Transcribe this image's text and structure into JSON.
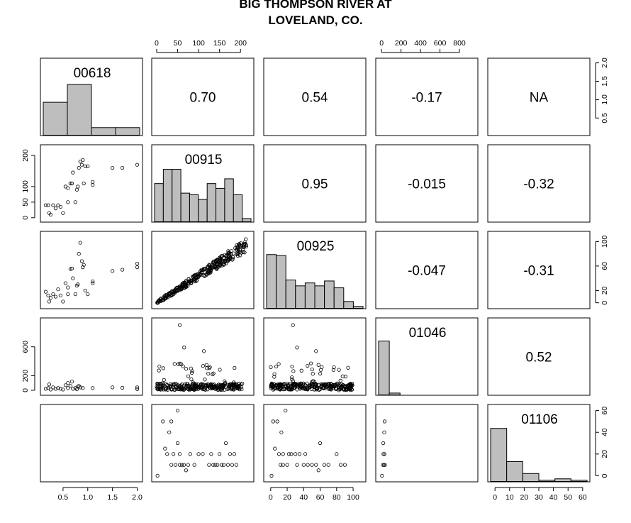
{
  "title": {
    "line1": "BIG THOMPSON RIVER AT",
    "line2": "LOVELAND, CO."
  },
  "chart_data": {
    "type": "scatter",
    "variables": [
      "00618",
      "00915",
      "00925",
      "01046",
      "01106"
    ],
    "axes": [
      {
        "range": [
          0.1,
          2.05
        ],
        "ticks": [
          0.5,
          1.0,
          1.5,
          2.0
        ],
        "tick_labels": [
          "0.5",
          "1.0",
          "1.5",
          "2.0"
        ]
      },
      {
        "range": [
          -5,
          225
        ],
        "ticks": [
          0,
          50,
          100,
          150,
          200
        ],
        "tick_labels": [
          "0",
          "50",
          "100",
          "150",
          "200"
        ]
      },
      {
        "range": [
          -5,
          112
        ],
        "ticks": [
          0,
          20,
          40,
          60,
          80,
          100
        ],
        "tick_labels": [
          "0",
          "20",
          "40",
          "60",
          "80",
          "100"
        ]
      },
      {
        "range": [
          -30,
          960
        ],
        "ticks": [
          0,
          200,
          400,
          600,
          800
        ],
        "tick_labels": [
          "0",
          "200",
          "400",
          "600",
          "800"
        ]
      },
      {
        "range": [
          -3,
          63
        ],
        "ticks": [
          0,
          10,
          20,
          30,
          40,
          50,
          60
        ],
        "tick_labels": [
          "0",
          "10",
          "20",
          "30",
          "40",
          "50",
          "60"
        ]
      }
    ],
    "top_axis": [
      {
        "col": 1,
        "axis": 1,
        "ticks": [
          0,
          50,
          100,
          150,
          200
        ],
        "tick_labels": [
          "0",
          "50",
          "100",
          "150",
          "200"
        ]
      },
      {
        "col": 3,
        "axis": 3,
        "ticks": [
          0,
          200,
          400,
          600,
          800
        ],
        "tick_labels": [
          "0",
          "200",
          "400",
          "600",
          "800"
        ]
      }
    ],
    "right_axis": [
      {
        "row": 0,
        "ticks": [
          0.5,
          1.0,
          1.5,
          2.0
        ],
        "tick_labels": [
          "0.5",
          "1.0",
          "1.5",
          "2.0"
        ],
        "range": [
          0.1,
          2.05
        ]
      },
      {
        "row": 2,
        "ticks": [
          0,
          20,
          60,
          100
        ],
        "tick_labels": [
          "0",
          "20",
          "60",
          "100"
        ],
        "range": [
          -5,
          112
        ]
      },
      {
        "row": 4,
        "ticks": [
          0,
          20,
          40,
          60
        ],
        "tick_labels": [
          "0",
          "20",
          "40",
          "60"
        ],
        "range": [
          -3,
          63
        ]
      }
    ],
    "left_axis": [
      {
        "row": 1,
        "ticks": [
          0,
          50,
          100,
          200
        ],
        "tick_labels": [
          "0",
          "50",
          "100",
          "200"
        ],
        "range": [
          -5,
          225
        ]
      },
      {
        "row": 3,
        "ticks": [
          0,
          200,
          600
        ],
        "tick_labels": [
          "0",
          "200",
          "600"
        ],
        "range": [
          -30,
          960
        ]
      }
    ],
    "bottom_axis": [
      {
        "col": 0,
        "ticks": [
          0.5,
          1.0,
          1.5,
          2.0
        ],
        "tick_labels": [
          "0.5",
          "1.0",
          "1.5",
          "2.0"
        ],
        "range": [
          0.1,
          2.05
        ]
      },
      {
        "col": 2,
        "ticks": [
          0,
          20,
          40,
          60,
          80,
          100
        ],
        "tick_labels": [
          "0",
          "20",
          "40",
          "60",
          "80",
          "100"
        ],
        "range": [
          -5,
          112
        ]
      },
      {
        "col": 4,
        "ticks": [
          0,
          10,
          20,
          30,
          40,
          50,
          60
        ],
        "tick_labels": [
          "0",
          "10",
          "20",
          "30",
          "40",
          "50",
          "60"
        ],
        "range": [
          -3,
          63
        ]
      }
    ],
    "correlations": [
      {
        "row": 0,
        "col": 1,
        "value": "0.70"
      },
      {
        "row": 0,
        "col": 2,
        "value": "0.54"
      },
      {
        "row": 0,
        "col": 3,
        "value": "-0.17"
      },
      {
        "row": 0,
        "col": 4,
        "value": "NA"
      },
      {
        "row": 1,
        "col": 2,
        "value": "0.95"
      },
      {
        "row": 1,
        "col": 3,
        "value": "-0.015"
      },
      {
        "row": 1,
        "col": 4,
        "value": "-0.32"
      },
      {
        "row": 2,
        "col": 3,
        "value": "-0.047"
      },
      {
        "row": 2,
        "col": 4,
        "value": "-0.31"
      },
      {
        "row": 3,
        "col": 4,
        "value": "0.52"
      }
    ],
    "histograms": [
      {
        "var": "00618",
        "edges": [
          0.0,
          0.5,
          1.0,
          1.5,
          2.0
        ],
        "counts": [
          13,
          20,
          3,
          3
        ],
        "ymax": 22
      },
      {
        "var": "00915",
        "edges": [
          0,
          20,
          40,
          60,
          80,
          100,
          120,
          140,
          160,
          180,
          200,
          220
        ],
        "counts": [
          24,
          33,
          33,
          18,
          17,
          14,
          24,
          21,
          27,
          17,
          2
        ],
        "ymax": 35
      },
      {
        "var": "00925",
        "edges": [
          0,
          10,
          20,
          30,
          40,
          50,
          60,
          70,
          80,
          90,
          100
        ],
        "counts": [
          55,
          54,
          29,
          23,
          26,
          23,
          28,
          21,
          7,
          2
        ],
        "ymax": 57
      },
      {
        "var": "01046",
        "edges": [
          0,
          100,
          200,
          300,
          400,
          500,
          600,
          700,
          800,
          900
        ],
        "counts": [
          290,
          10,
          0,
          0,
          0,
          0,
          0,
          0,
          0
        ],
        "ymax": 300
      },
      {
        "var": "01106",
        "edges": [
          0,
          10,
          20,
          30,
          40,
          50,
          60
        ],
        "counts": [
          40,
          15,
          6,
          1,
          2,
          1
        ],
        "ymax": 42
      }
    ],
    "scatter_points": {
      "r1c0": [
        [
          0.15,
          40
        ],
        [
          0.2,
          40
        ],
        [
          0.22,
          15
        ],
        [
          0.25,
          10
        ],
        [
          0.3,
          40
        ],
        [
          0.35,
          30
        ],
        [
          0.4,
          40
        ],
        [
          0.45,
          35
        ],
        [
          0.5,
          15
        ],
        [
          0.55,
          100
        ],
        [
          0.6,
          50
        ],
        [
          0.6,
          95
        ],
        [
          0.65,
          110
        ],
        [
          0.68,
          110
        ],
        [
          0.7,
          145
        ],
        [
          0.75,
          50
        ],
        [
          0.78,
          90
        ],
        [
          0.8,
          100
        ],
        [
          0.82,
          160
        ],
        [
          0.85,
          180
        ],
        [
          0.88,
          170
        ],
        [
          0.9,
          185
        ],
        [
          0.92,
          110
        ],
        [
          0.95,
          165
        ],
        [
          1.0,
          165
        ],
        [
          1.1,
          115
        ],
        [
          1.1,
          105
        ],
        [
          1.5,
          160
        ],
        [
          1.7,
          160
        ],
        [
          2.0,
          170
        ]
      ],
      "r2c0": [
        [
          0.15,
          18
        ],
        [
          0.2,
          12
        ],
        [
          0.22,
          2
        ],
        [
          0.25,
          8
        ],
        [
          0.3,
          14
        ],
        [
          0.35,
          10
        ],
        [
          0.4,
          22
        ],
        [
          0.45,
          12
        ],
        [
          0.5,
          2
        ],
        [
          0.55,
          32
        ],
        [
          0.6,
          14
        ],
        [
          0.6,
          25
        ],
        [
          0.65,
          55
        ],
        [
          0.68,
          56
        ],
        [
          0.7,
          40
        ],
        [
          0.75,
          14
        ],
        [
          0.78,
          28
        ],
        [
          0.8,
          30
        ],
        [
          0.82,
          80
        ],
        [
          0.85,
          98
        ],
        [
          0.88,
          68
        ],
        [
          0.9,
          58
        ],
        [
          0.92,
          62
        ],
        [
          0.95,
          20
        ],
        [
          1.0,
          14
        ],
        [
          1.1,
          35
        ],
        [
          1.1,
          32
        ],
        [
          1.5,
          52
        ],
        [
          1.7,
          54
        ],
        [
          2.0,
          58
        ],
        [
          2.0,
          64
        ]
      ],
      "r3c0": [
        [
          0.15,
          20
        ],
        [
          0.2,
          30
        ],
        [
          0.22,
          80
        ],
        [
          0.25,
          10
        ],
        [
          0.3,
          40
        ],
        [
          0.35,
          20
        ],
        [
          0.4,
          30
        ],
        [
          0.45,
          20
        ],
        [
          0.5,
          10
        ],
        [
          0.55,
          70
        ],
        [
          0.6,
          100
        ],
        [
          0.6,
          30
        ],
        [
          0.65,
          60
        ],
        [
          0.68,
          120
        ],
        [
          0.7,
          20
        ],
        [
          0.75,
          30
        ],
        [
          0.78,
          15
        ],
        [
          0.8,
          50
        ],
        [
          0.82,
          60
        ],
        [
          0.85,
          40
        ],
        [
          0.9,
          30
        ],
        [
          1.1,
          30
        ],
        [
          1.5,
          40
        ],
        [
          1.7,
          35
        ],
        [
          2.0,
          15
        ],
        [
          2.0,
          40
        ]
      ],
      "r2c1": "generate:linear:00915:00925",
      "r3c1": "generate:noise:00915:01046",
      "r3c2": "generate:noise:00925:01046",
      "r4c1": [
        [
          2,
          0
        ],
        [
          15,
          50
        ],
        [
          20,
          25
        ],
        [
          25,
          20
        ],
        [
          30,
          40
        ],
        [
          35,
          50
        ],
        [
          35,
          10
        ],
        [
          40,
          20
        ],
        [
          45,
          10
        ],
        [
          50,
          30
        ],
        [
          50,
          60
        ],
        [
          55,
          10
        ],
        [
          55,
          20
        ],
        [
          60,
          10
        ],
        [
          65,
          10
        ],
        [
          70,
          5
        ],
        [
          75,
          10
        ],
        [
          80,
          20
        ],
        [
          90,
          10
        ],
        [
          100,
          20
        ],
        [
          110,
          20
        ],
        [
          125,
          10
        ],
        [
          130,
          20
        ],
        [
          135,
          10
        ],
        [
          140,
          10
        ],
        [
          145,
          10
        ],
        [
          150,
          20
        ],
        [
          155,
          10
        ],
        [
          160,
          10
        ],
        [
          165,
          30
        ],
        [
          170,
          10
        ],
        [
          175,
          20
        ],
        [
          180,
          10
        ],
        [
          185,
          20
        ],
        [
          190,
          10
        ]
      ],
      "r4c2": [
        [
          1,
          0
        ],
        [
          3,
          50
        ],
        [
          5,
          25
        ],
        [
          8,
          50
        ],
        [
          10,
          20
        ],
        [
          12,
          10
        ],
        [
          13,
          40
        ],
        [
          15,
          10
        ],
        [
          15,
          20
        ],
        [
          18,
          60
        ],
        [
          20,
          10
        ],
        [
          22,
          20
        ],
        [
          25,
          20
        ],
        [
          30,
          20
        ],
        [
          32,
          10
        ],
        [
          35,
          20
        ],
        [
          40,
          10
        ],
        [
          42,
          20
        ],
        [
          45,
          10
        ],
        [
          50,
          10
        ],
        [
          55,
          10
        ],
        [
          58,
          5
        ],
        [
          60,
          30
        ],
        [
          65,
          10
        ],
        [
          70,
          10
        ],
        [
          80,
          20
        ],
        [
          85,
          10
        ],
        [
          90,
          10
        ]
      ],
      "r4c3": [
        [
          5,
          0
        ],
        [
          15,
          10
        ],
        [
          18,
          30
        ],
        [
          20,
          20
        ],
        [
          25,
          10
        ],
        [
          28,
          40
        ],
        [
          30,
          20
        ],
        [
          32,
          50
        ],
        [
          35,
          10
        ]
      ]
    }
  }
}
